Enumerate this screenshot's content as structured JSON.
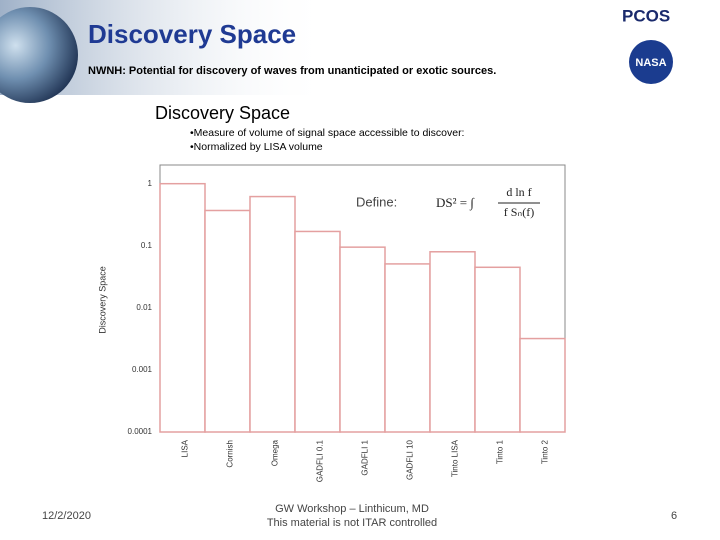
{
  "slide": {
    "title": "Discovery Space",
    "subtitle": "NWNH:  Potential for discovery of waves from unanticipated or exotic sources.",
    "date": "12/2/2020",
    "footer": [
      "GW Workshop – Linthicum, MD",
      "This material is not ITAR controlled"
    ],
    "page": "6",
    "logos": {
      "pcos": "PCOS",
      "nasa": "NASA"
    }
  },
  "chart_data": {
    "type": "bar",
    "title": "Discovery Space",
    "notes": [
      "•Measure of volume of signal space accessible to discover:",
      "•Normalized by LISA volume"
    ],
    "y_label": "Discovery Space",
    "annotations": {
      "define": "Define:",
      "lhs": "DS² = ∫",
      "numerator": "d ln f",
      "denominator": "f Sₙ(f)"
    },
    "categories": [
      "LISA",
      "Cornish",
      "Omega",
      "GADFLI 0.1",
      "GADFLI 1",
      "GADFLI 10",
      "Tinto LISA",
      "Tinto 1",
      "Tinto 2"
    ],
    "values": [
      1,
      0.37,
      0.62,
      0.17,
      0.095,
      0.051,
      0.08,
      0.045,
      0.0032
    ],
    "color": "#e4a0a0",
    "yscale": "log",
    "ylim": [
      0.0001,
      2
    ],
    "yticks": [
      1,
      0.1,
      0.01,
      0.001,
      0.0001
    ]
  }
}
